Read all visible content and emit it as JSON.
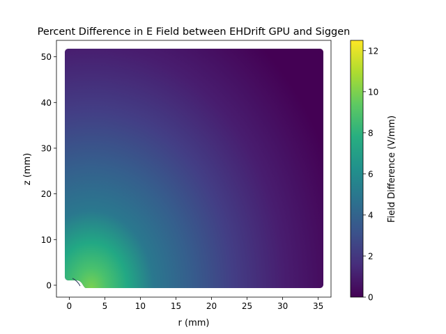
{
  "chart_data": {
    "type": "heatmap",
    "title": "Percent Difference in E Field between EHDrift GPU and Siggen",
    "xlabel": "r (mm)",
    "ylabel": "z (mm)",
    "xlim": [
      -1.8,
      36.8
    ],
    "ylim": [
      -2.6,
      53.6
    ],
    "xticks": [
      0,
      5,
      10,
      15,
      20,
      25,
      30,
      35
    ],
    "yticks": [
      0,
      10,
      20,
      30,
      40,
      50
    ],
    "x_tick_labels": [
      "0",
      "5",
      "10",
      "15",
      "20",
      "25",
      "30",
      "35"
    ],
    "y_tick_labels": [
      "0",
      "10",
      "20",
      "30",
      "40",
      "50"
    ],
    "data_extent": {
      "r": [
        0,
        35
      ],
      "z": [
        0,
        51
      ]
    },
    "peak_location": {
      "r": 3.5,
      "z": 0,
      "value": 8.5
    },
    "colormap": "viridis",
    "colorbar": {
      "label": "Field Difference (V/mm)",
      "range": [
        0,
        12.5
      ],
      "ticks": [
        0,
        2,
        4,
        6,
        8,
        10,
        12
      ],
      "tick_labels": [
        "0",
        "2",
        "4",
        "6",
        "8",
        "10",
        "12"
      ]
    },
    "grid": false
  }
}
